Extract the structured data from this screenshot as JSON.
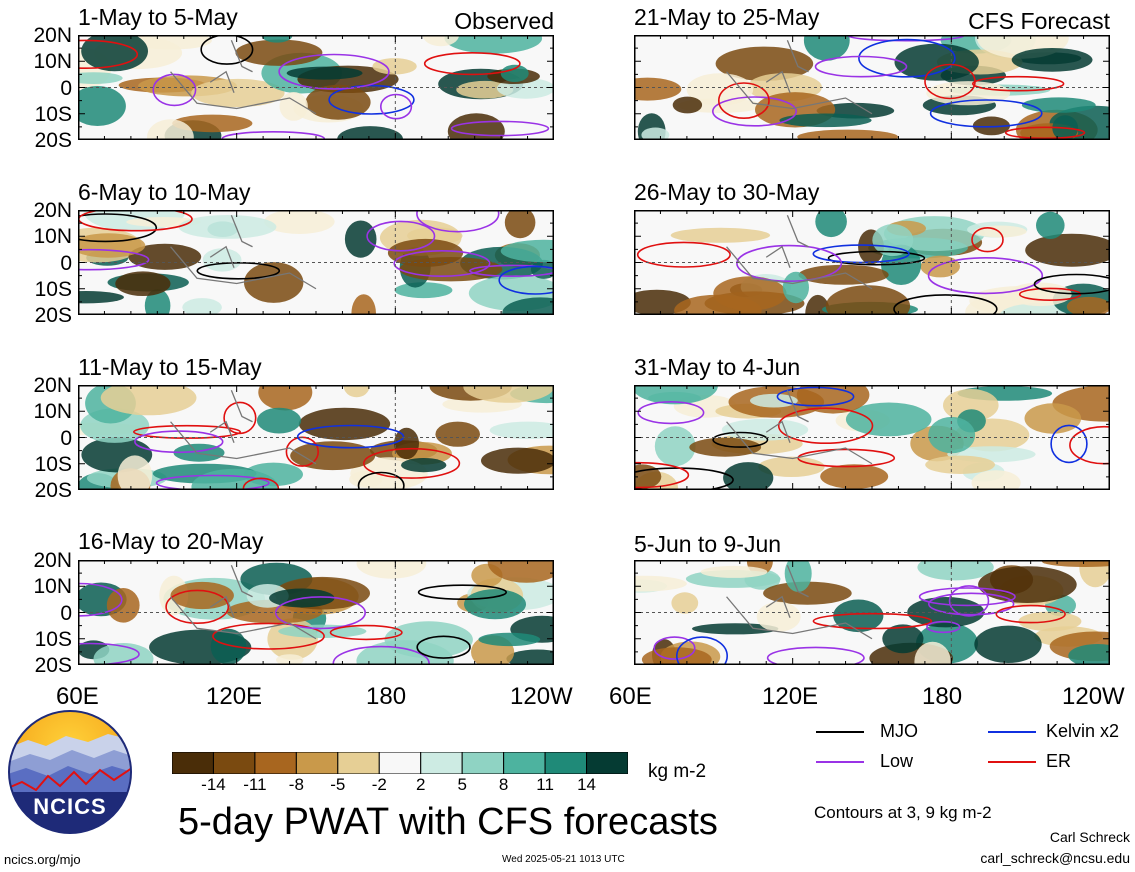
{
  "chart_data": {
    "type": "heatmap",
    "title": "5-day PWAT with CFS forecasts",
    "units": "kg m-2",
    "x_ticks": [
      "60E",
      "120E",
      "180",
      "120W"
    ],
    "y_ticks": [
      "20N",
      "10N",
      "0",
      "10S",
      "20S"
    ],
    "xlim": [
      60,
      240
    ],
    "ylim": [
      -20,
      20
    ],
    "colorbar": {
      "levels": [
        "-14",
        "-11",
        "-8",
        "-5",
        "-2",
        "2",
        "5",
        "8",
        "11",
        "14"
      ],
      "colors": [
        "#4a2d08",
        "#7a4a10",
        "#a8661f",
        "#c9994a",
        "#e6cf95",
        "#f7efd7",
        "#f8f8f8",
        "#cdebe3",
        "#8fd3c3",
        "#4db39f",
        "#1f8a78",
        "#0b5e52",
        "#053b33"
      ]
    },
    "contour_note": "Contours at 3, 9 kg m-2",
    "legend": [
      {
        "label": "MJO",
        "color": "#000000"
      },
      {
        "label": "Kelvin x2",
        "color": "#1030e0"
      },
      {
        "label": "Low",
        "color": "#9a33e6"
      },
      {
        "label": "ER",
        "color": "#e01010"
      }
    ],
    "panels": [
      {
        "id": "p1",
        "title": "1-May to 5-May",
        "tag": "Observed",
        "column": "left"
      },
      {
        "id": "p2",
        "title": "6-May to 10-May",
        "tag": "",
        "column": "left"
      },
      {
        "id": "p3",
        "title": "11-May to 15-May",
        "tag": "",
        "column": "left"
      },
      {
        "id": "p4",
        "title": "16-May to 20-May",
        "tag": "",
        "column": "left"
      },
      {
        "id": "p5",
        "title": "21-May to 25-May",
        "tag": "CFS Forecast",
        "column": "right"
      },
      {
        "id": "p6",
        "title": "26-May to 30-May",
        "tag": "",
        "column": "right"
      },
      {
        "id": "p7",
        "title": "31-May to 4-Jun",
        "tag": "",
        "column": "right"
      },
      {
        "id": "p8",
        "title": "5-Jun to 9-Jun",
        "tag": "",
        "column": "right"
      }
    ]
  },
  "footer": {
    "logo_text": "NCICS",
    "url": "ncics.org/mjo",
    "timestamp": "Wed 2025-05-21 1013 UTC",
    "author": "Carl Schreck",
    "email": "carl_schreck@ncsu.edu"
  }
}
